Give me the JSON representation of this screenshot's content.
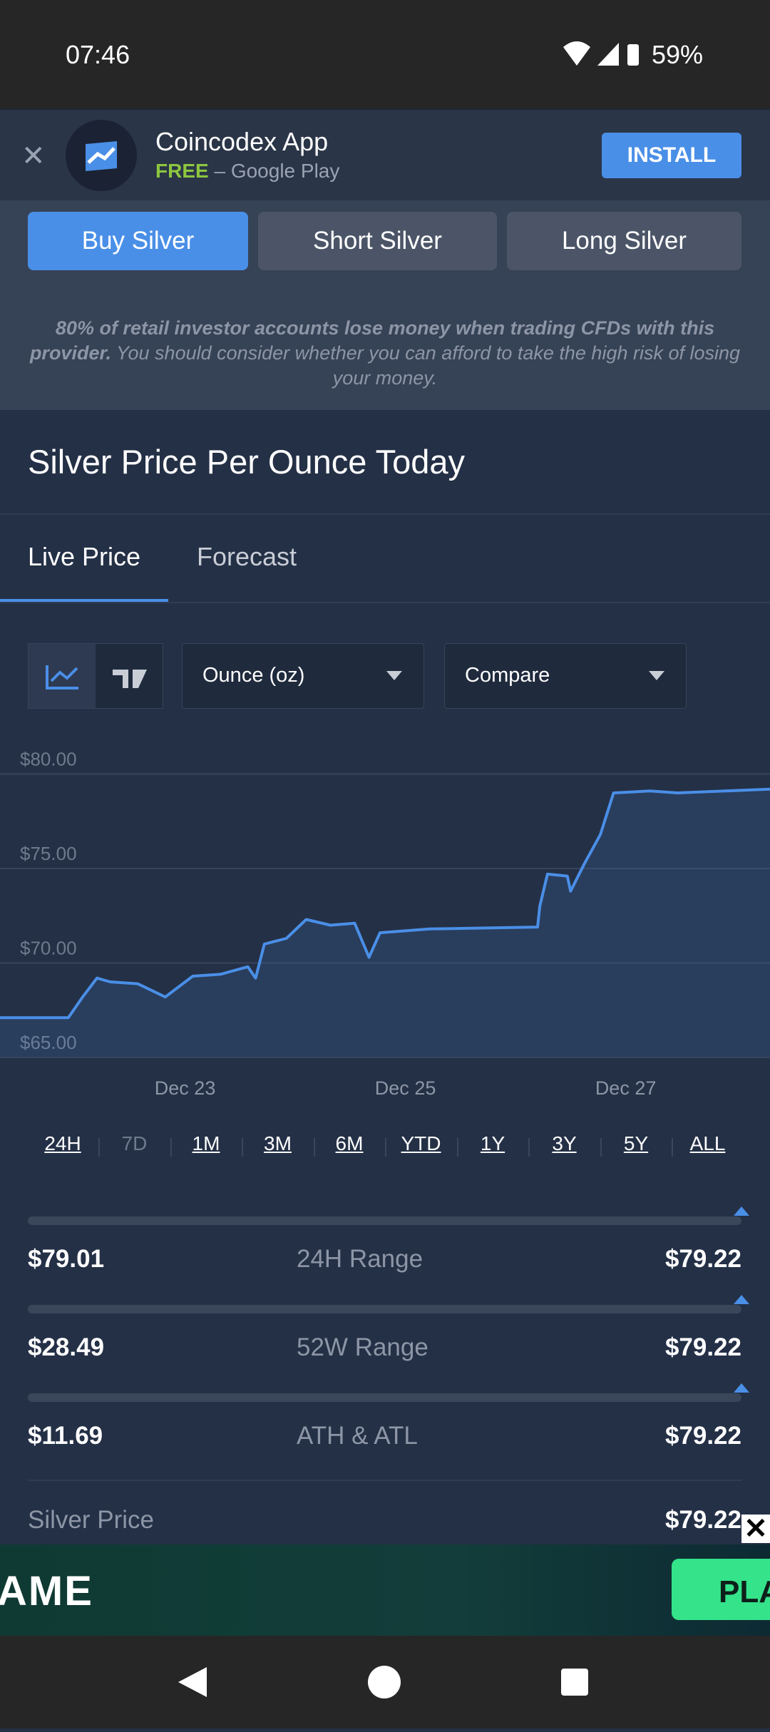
{
  "status_bar": {
    "time": "07:46",
    "battery": "59%"
  },
  "ad_banner": {
    "app_name": "Coincodex App",
    "price": "FREE",
    "store": "– Google Play",
    "button": "INSTALL"
  },
  "actions": [
    "Buy Silver",
    "Short Silver",
    "Long Silver"
  ],
  "disclaimer": {
    "warning": "80% of retail investor accounts lose money when trading CFDs with this provider.",
    "advice": "You should consider whether you can afford to take the high risk of losing your money."
  },
  "page_title": "Silver Price Per Ounce Today",
  "tabs": [
    "Live Price",
    "Forecast"
  ],
  "selects": [
    "Ounce (oz)",
    "Compare"
  ],
  "chart": {
    "type": "line",
    "color": "#4a8fe7",
    "x": [
      21.32,
      21.94,
      22.07,
      22.2,
      22.32,
      22.57,
      22.82,
      23.07,
      23.32,
      23.57,
      23.64,
      23.72,
      23.92,
      24.1,
      24.32,
      24.54,
      24.67,
      24.77,
      25.22,
      26.2,
      26.22,
      26.29,
      26.47,
      26.5,
      26.62,
      26.77,
      26.89,
      27.22,
      27.47,
      28.31
    ],
    "values": [
      67.1,
      67.1,
      68.2,
      69.2,
      69.0,
      68.9,
      68.2,
      69.3,
      69.4,
      69.8,
      69.2,
      71.0,
      71.3,
      72.3,
      72.0,
      72.1,
      70.3,
      71.6,
      71.8,
      71.9,
      73.0,
      74.7,
      74.6,
      73.8,
      75.2,
      76.8,
      79.0,
      79.1,
      79.0,
      79.2
    ],
    "xlim": [
      21.32,
      28.31
    ],
    "ylim": [
      65,
      81.3
    ],
    "xticks": [
      {
        "value": 23,
        "label": "Dec 23"
      },
      {
        "value": 25,
        "label": "Dec 25"
      },
      {
        "value": 27,
        "label": "Dec 27"
      }
    ],
    "yticks": [
      {
        "value": 65,
        "label": "$65.00"
      },
      {
        "value": 70,
        "label": "$70.00"
      },
      {
        "value": 75,
        "label": "$75.00"
      },
      {
        "value": 80,
        "label": "$80.00"
      }
    ],
    "grid": true
  },
  "time_ranges": [
    "24H",
    "7D",
    "1M",
    "3M",
    "6M",
    "YTD",
    "1Y",
    "3Y",
    "5Y",
    "ALL"
  ],
  "ranges": [
    {
      "low": "$79.01",
      "label": "24H Range",
      "high": "$79.22"
    },
    {
      "low": "$28.49",
      "label": "52W Range",
      "high": "$79.22"
    },
    {
      "low": "$11.69",
      "label": "ATH & ATL",
      "high": "$79.22"
    }
  ],
  "silver_price": {
    "label": "Silver Price",
    "value": "$79.22"
  },
  "bottom_ad": {
    "text": "AME",
    "button": "PLA"
  }
}
